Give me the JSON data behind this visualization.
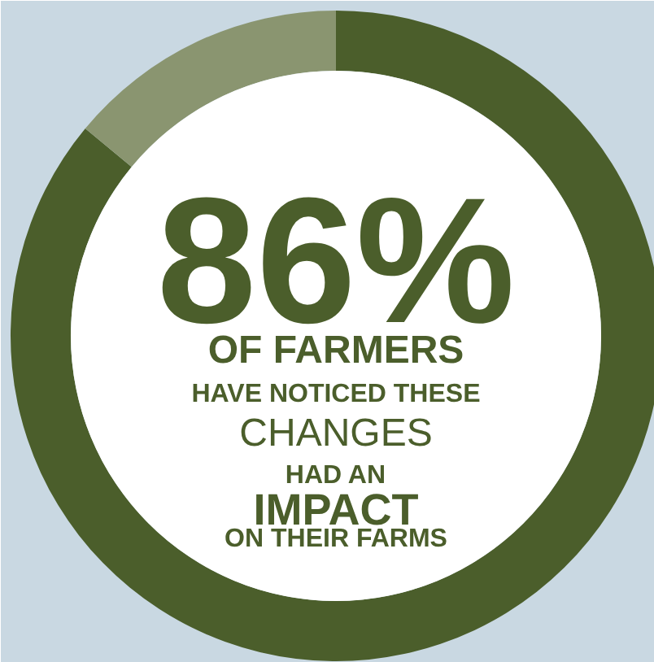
{
  "chart_data": {
    "type": "donut",
    "categories": [
      null,
      null
    ],
    "values": [
      86,
      14
    ],
    "colors": [
      "#4b5e2b",
      "#8a9570"
    ],
    "annotations": [
      "86%",
      "OF FARMERS",
      "HAVE NOTICED THESE",
      "CHANGES",
      "HAD AN",
      "IMPACT",
      "ON THEIR FARMS"
    ]
  }
}
